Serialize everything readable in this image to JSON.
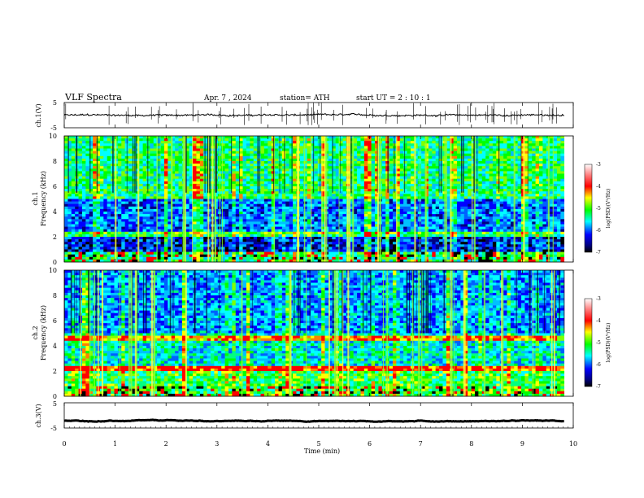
{
  "header": {
    "title": "VLF  Spectra",
    "date": "Apr. 7  , 2024",
    "station": "station= ATH",
    "start": "start  UT  =    2  : 10 : 1"
  },
  "chart_data": [
    {
      "id": "ch1_voltage",
      "type": "line",
      "ylabel": "ch.1(V)",
      "ylim": [
        -5,
        5
      ],
      "yticks": [
        "5",
        "-5"
      ],
      "xlim": [
        0,
        10
      ],
      "trace_level": 0,
      "trace_amplitude": 0.6
    },
    {
      "id": "ch1_spectrogram",
      "type": "heatmap",
      "ylabel": "ch.1\nFrequency  (kHz)",
      "ylim": [
        0,
        10
      ],
      "yticks": [
        "0",
        "2",
        "4",
        "6",
        "8",
        "10"
      ],
      "xlim": [
        0,
        9.82
      ],
      "colorbar": {
        "label": "log(PSD)(V²/Hz)",
        "range": [
          -7,
          -3
        ],
        "ticks": [
          "-3",
          "-4",
          "-5",
          "-6",
          "-7"
        ]
      }
    },
    {
      "id": "ch2_spectrogram",
      "type": "heatmap",
      "ylabel": "ch.2\nFrequency  (kHz)",
      "ylim": [
        0,
        10
      ],
      "yticks": [
        "0",
        "2",
        "4",
        "6",
        "8",
        "10"
      ],
      "xlim": [
        0,
        9.82
      ],
      "colorbar": {
        "label": "log(PSD)(V²/Hz)",
        "range": [
          -7,
          -3
        ],
        "ticks": [
          "-3",
          "-4",
          "-5",
          "-6",
          "-7"
        ]
      }
    },
    {
      "id": "ch3_voltage",
      "type": "line",
      "ylabel": "ch.3(V)",
      "ylim": [
        -5,
        5
      ],
      "yticks": [
        "5",
        "-5"
      ],
      "xlim": [
        0,
        10
      ],
      "trace_level": -2.2,
      "trace_amplitude": 0.1
    }
  ],
  "xaxis": {
    "label": "Time  (min)",
    "range": [
      0,
      10
    ],
    "ticks": [
      "0",
      "1",
      "2",
      "3",
      "4",
      "5",
      "6",
      "7",
      "8",
      "9",
      "10"
    ]
  },
  "colors": {
    "trace": "#000000",
    "axis": "#000000"
  }
}
